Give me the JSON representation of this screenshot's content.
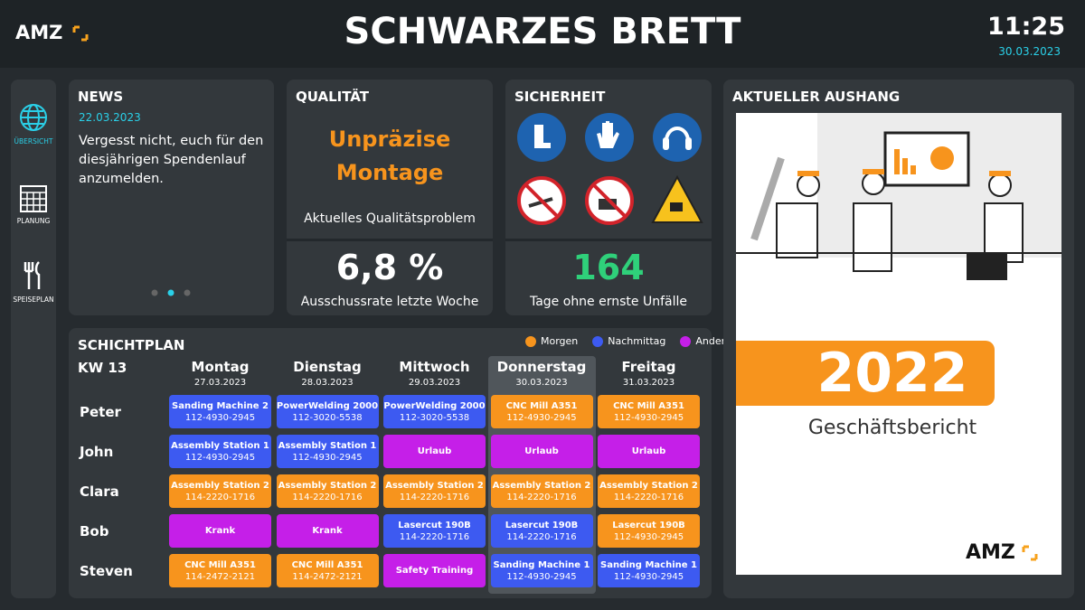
{
  "header": {
    "logo": "AMZ",
    "title": "SCHWARZES BRETT",
    "time": "11:25",
    "date": "30.03.2023"
  },
  "nav": [
    {
      "label": "ÜBERSICHT"
    },
    {
      "label": "PLANUNG"
    },
    {
      "label": "SPEISEPLAN"
    }
  ],
  "news": {
    "title": "NEWS",
    "date": "22.03.2023",
    "text": "Vergesst nicht, euch für den diesjährigen Spendenlauf anzumelden."
  },
  "quality": {
    "title": "QUALITÄT",
    "problem": "Unpräzise Montage",
    "problem_label": "Aktuelles Qualitätsproblem",
    "rate": "6,8 %",
    "rate_label": "Ausschussrate letzte Woche"
  },
  "safety": {
    "title": "SICHERHEIT",
    "days": 164,
    "days_label": "Tage ohne ernste Unfälle"
  },
  "shiftplan": {
    "title": "SCHICHTPLAN",
    "week": "KW 13",
    "legend": [
      {
        "name": "Morgen",
        "color": "#f7941d"
      },
      {
        "name": "Nachmittag",
        "color": "#3d5af1"
      },
      {
        "name": "Andere",
        "color": "#c51fe8"
      }
    ],
    "days": [
      {
        "name": "Montag",
        "date": "27.03.2023"
      },
      {
        "name": "Dienstag",
        "date": "28.03.2023"
      },
      {
        "name": "Mittwoch",
        "date": "29.03.2023"
      },
      {
        "name": "Donnerstag",
        "date": "30.03.2023"
      },
      {
        "name": "Freitag",
        "date": "31.03.2023"
      }
    ],
    "rows": [
      {
        "name": "Peter",
        "cells": [
          {
            "task": "Sanding Machine 2",
            "code": "112-4930-2945",
            "color": "#3d5af1"
          },
          {
            "task": "PowerWelding 2000",
            "code": "112-3020-5538",
            "color": "#3d5af1"
          },
          {
            "task": "PowerWelding 2000",
            "code": "112-3020-5538",
            "color": "#3d5af1"
          },
          {
            "task": "CNC Mill A351",
            "code": "112-4930-2945",
            "color": "#f7941d"
          },
          {
            "task": "CNC Mill A351",
            "code": "112-4930-2945",
            "color": "#f7941d"
          }
        ]
      },
      {
        "name": "John",
        "cells": [
          {
            "task": "Assembly Station 1",
            "code": "112-4930-2945",
            "color": "#3d5af1"
          },
          {
            "task": "Assembly Station 1",
            "code": "112-4930-2945",
            "color": "#3d5af1"
          },
          {
            "task": "Urlaub",
            "color": "#c51fe8"
          },
          {
            "task": "Urlaub",
            "color": "#c51fe8"
          },
          {
            "task": "Urlaub",
            "color": "#c51fe8"
          }
        ]
      },
      {
        "name": "Clara",
        "cells": [
          {
            "task": "Assembly Station 2",
            "code": "114-2220-1716",
            "color": "#f7941d"
          },
          {
            "task": "Assembly Station 2",
            "code": "114-2220-1716",
            "color": "#f7941d"
          },
          {
            "task": "Assembly Station 2",
            "code": "114-2220-1716",
            "color": "#f7941d"
          },
          {
            "task": "Assembly Station 2",
            "code": "114-2220-1716",
            "color": "#f7941d"
          },
          {
            "task": "Assembly Station 2",
            "code": "114-2220-1716",
            "color": "#f7941d"
          }
        ]
      },
      {
        "name": "Bob",
        "cells": [
          {
            "task": "Krank",
            "color": "#c51fe8"
          },
          {
            "task": "Krank",
            "color": "#c51fe8"
          },
          {
            "task": "Lasercut 190B",
            "code": "114-2220-1716",
            "color": "#3d5af1"
          },
          {
            "task": "Lasercut 190B",
            "code": "114-2220-1716",
            "color": "#3d5af1"
          },
          {
            "task": "Lasercut 190B",
            "code": "112-4930-2945",
            "color": "#f7941d"
          }
        ]
      },
      {
        "name": "Steven",
        "cells": [
          {
            "task": "CNC Mill A351",
            "code": "114-2472-2121",
            "color": "#f7941d"
          },
          {
            "task": "CNC Mill A351",
            "code": "114-2472-2121",
            "color": "#f7941d"
          },
          {
            "task": "Safety Training",
            "color": "#c51fe8"
          },
          {
            "task": "Sanding Machine 1",
            "code": "112-4930-2945",
            "color": "#3d5af1"
          },
          {
            "task": "Sanding Machine 1",
            "code": "112-4930-2945",
            "color": "#3d5af1"
          }
        ]
      }
    ]
  },
  "poster": {
    "title": "AKTUELLER AUSHANG",
    "year": 2022,
    "subtitle": "Geschäftsbericht",
    "logo": "AMZ"
  }
}
